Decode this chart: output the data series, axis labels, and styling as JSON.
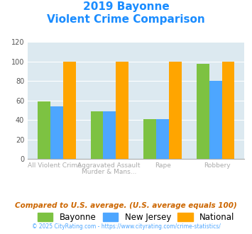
{
  "title_line1": "2019 Bayonne",
  "title_line2": "Violent Crime Comparison",
  "cat_labels_top": [
    "",
    "Aggravated Assault",
    "",
    ""
  ],
  "cat_labels_bot": [
    "All Violent Crime",
    "Murder & Mans...",
    "Rape",
    "Robbery"
  ],
  "bayonne": [
    59,
    49,
    41,
    98
  ],
  "new_jersey": [
    54,
    49,
    41,
    80
  ],
  "national": [
    100,
    100,
    100,
    100
  ],
  "bar_colors": {
    "Bayonne": "#7dc242",
    "New Jersey": "#4da6ff",
    "National": "#ffa500"
  },
  "ylim": [
    0,
    120
  ],
  "yticks": [
    0,
    20,
    40,
    60,
    80,
    100,
    120
  ],
  "plot_bg": "#dce9f0",
  "title_color": "#1a8cff",
  "footer_note": "Compared to U.S. average. (U.S. average equals 100)",
  "footer_copy": "© 2025 CityRating.com - https://www.cityrating.com/crime-statistics/",
  "legend_labels": [
    "Bayonne",
    "New Jersey",
    "National"
  ]
}
